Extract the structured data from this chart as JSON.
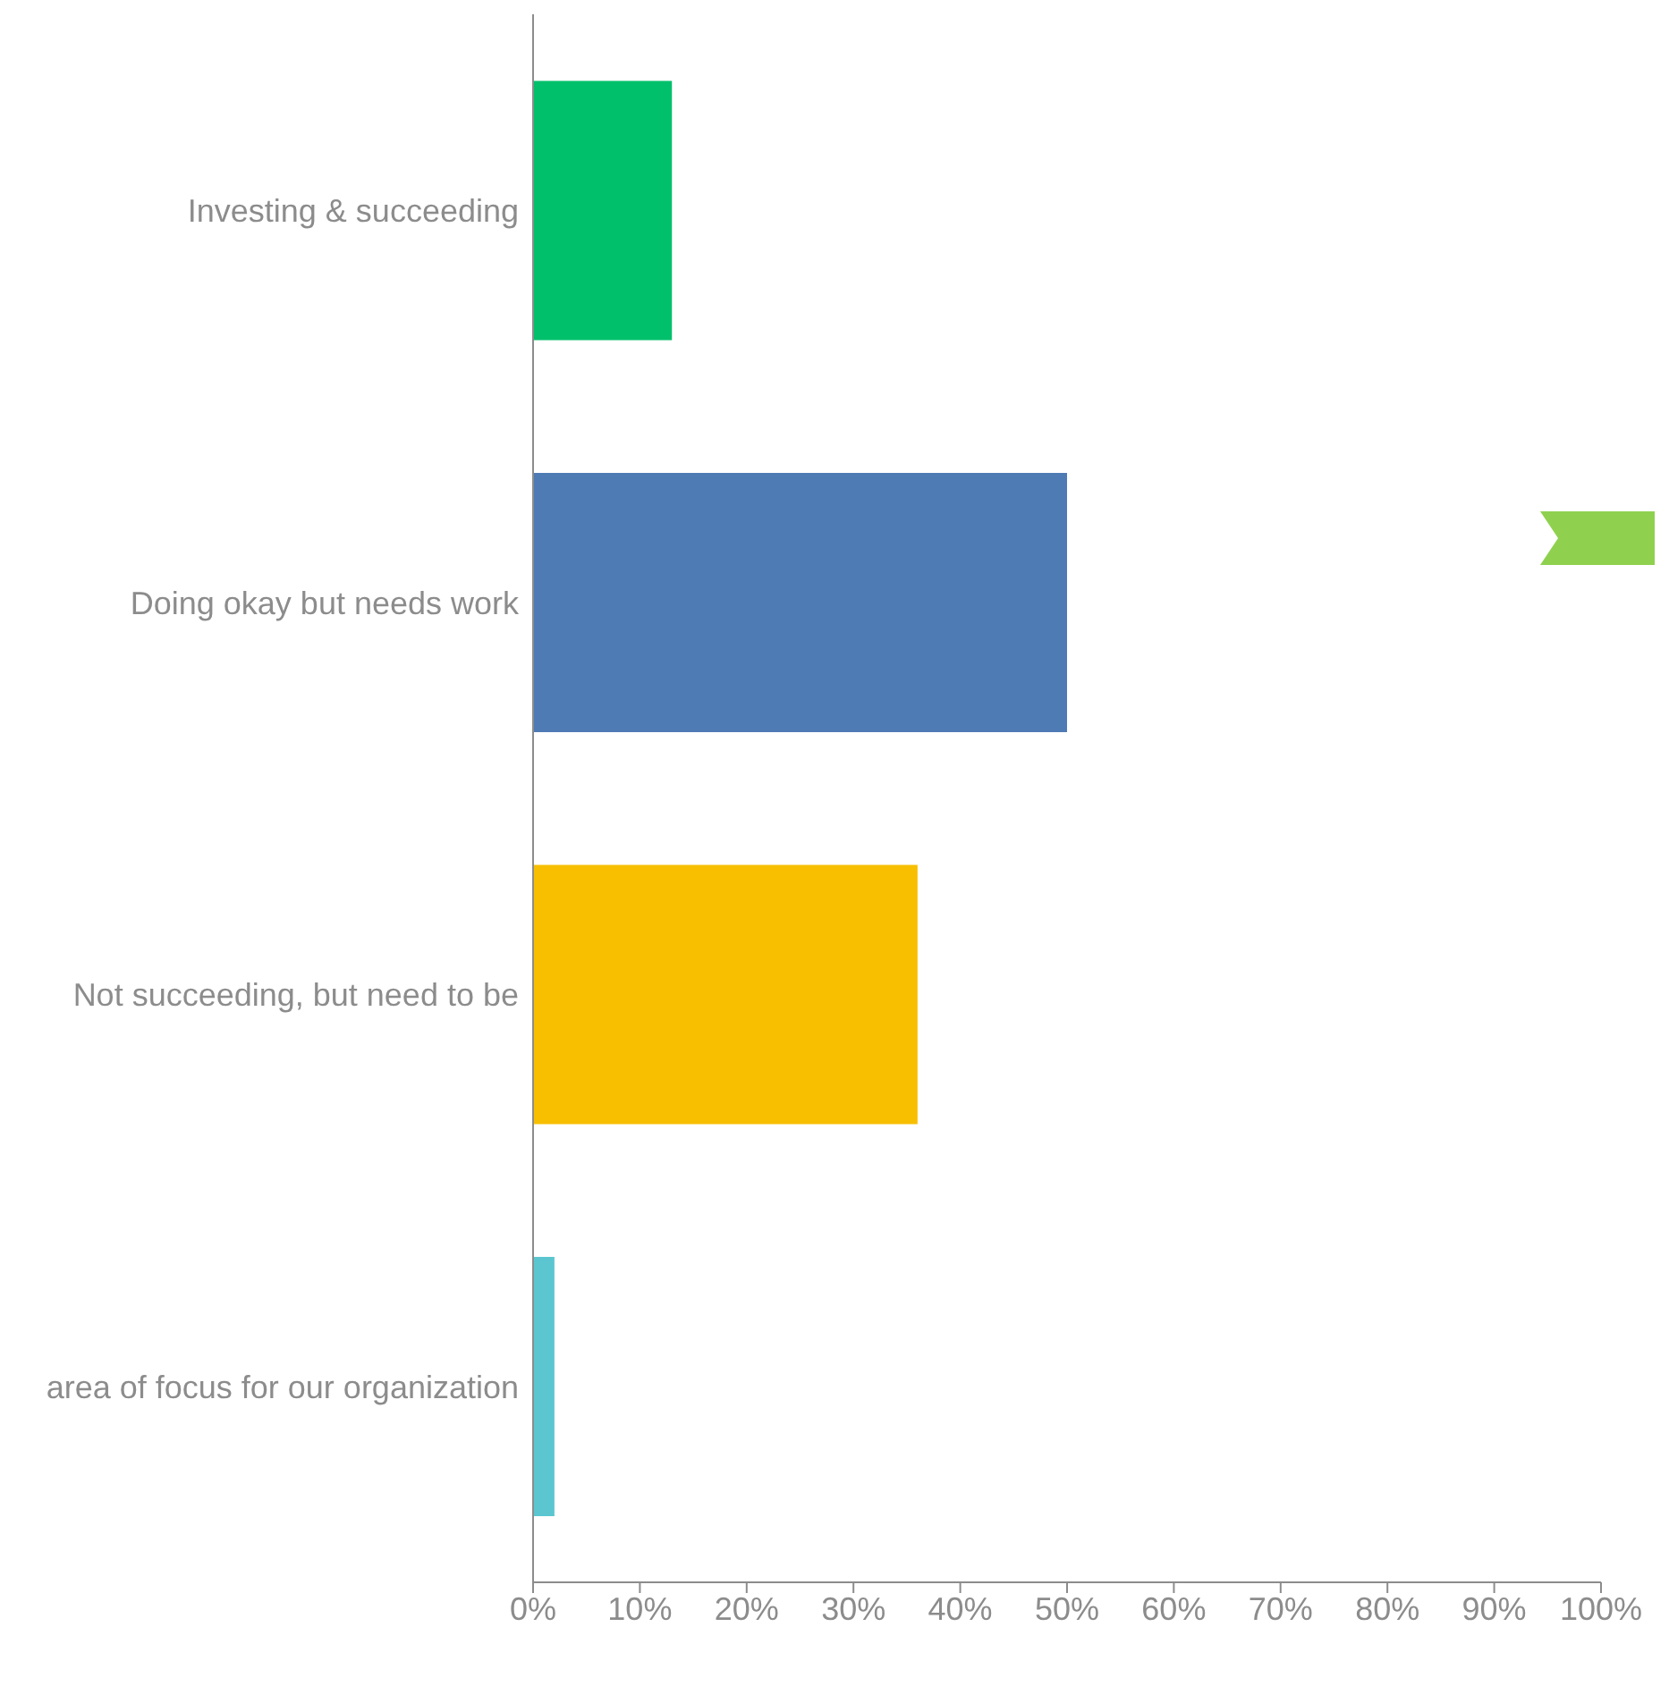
{
  "chart_data": {
    "type": "bar",
    "orientation": "horizontal",
    "categories": [
      "Investing & succeeding",
      "Doing okay but needs work",
      "Not succeeding, but need to be",
      "area of focus for our organization"
    ],
    "values": [
      13,
      50,
      36,
      2
    ],
    "colors": [
      "#00c06b",
      "#4f7bb5",
      "#f7bf00",
      "#5bc6cf"
    ],
    "xlim": [
      0,
      100
    ],
    "xticks": [
      {
        "value": 0,
        "label": "0%"
      },
      {
        "value": 10,
        "label": "10%"
      },
      {
        "value": 20,
        "label": "20%"
      },
      {
        "value": 30,
        "label": "30%"
      },
      {
        "value": 40,
        "label": "40%"
      },
      {
        "value": 50,
        "label": "50%"
      },
      {
        "value": 60,
        "label": "60%"
      },
      {
        "value": 70,
        "label": "70%"
      },
      {
        "value": 80,
        "label": "80%"
      },
      {
        "value": 90,
        "label": "90%"
      },
      {
        "value": 100,
        "label": "100%"
      }
    ],
    "grid": false,
    "legend": false
  }
}
